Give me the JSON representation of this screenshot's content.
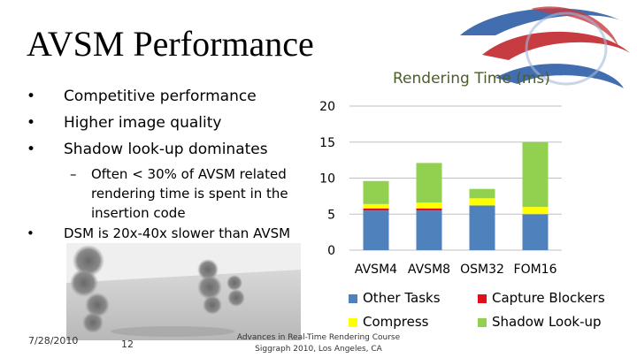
{
  "slide": {
    "title": "AVSM Performance",
    "bullets": [
      "Competitive performance",
      "Higher image quality",
      "Shadow look-up dominates",
      "DSM is 20x-40x slower than AVSM"
    ],
    "sub_bullet_dash": "–",
    "sub_bullet": "Often < 30% of AVSM related rendering time is spent in the insertion code"
  },
  "chart_data": {
    "type": "bar",
    "title": "Rendering Time (ms)",
    "categories": [
      "AVSM4",
      "AVSM8",
      "OSM32",
      "FOM16"
    ],
    "y_ticks": [
      "0",
      "5",
      "10",
      "15",
      "20"
    ],
    "ylim": [
      0,
      20
    ],
    "stacked": true,
    "series": [
      {
        "name": "Other Tasks",
        "color": "#4f81bd",
        "values": [
          5.5,
          5.5,
          6.2,
          5.0
        ]
      },
      {
        "name": "Capture Blockers",
        "color": "#e0101a",
        "values": [
          0.3,
          0.3,
          0.0,
          0.0
        ]
      },
      {
        "name": "Compress",
        "color": "#ffff00",
        "values": [
          0.6,
          0.8,
          1.0,
          1.0
        ]
      },
      {
        "name": "Shadow Look-up",
        "color": "#92d050",
        "values": [
          3.2,
          5.5,
          1.3,
          9.0
        ]
      }
    ],
    "grid": true,
    "legend": "bottom"
  },
  "footer": {
    "date": "7/28/2010",
    "page": "12",
    "center_line1": "Advances in Real-Time Rendering Course",
    "center_line2": "Siggraph 2010, Los Angeles, CA"
  },
  "colors": {
    "title_green": "#4a5e2a",
    "logo_red": "#c0272d",
    "logo_blue": "#2e5fa8"
  },
  "icons": {
    "logo": "siggraph-swirl-logo",
    "image": "smoke-plume-render"
  }
}
